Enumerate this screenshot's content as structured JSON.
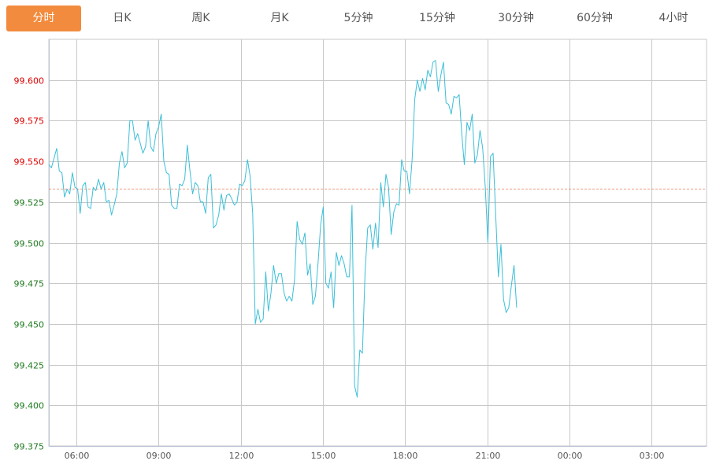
{
  "tabs": [
    {
      "label": "分时",
      "active": true
    },
    {
      "label": "日K"
    },
    {
      "label": "周K"
    },
    {
      "label": "月K"
    },
    {
      "label": "5分钟"
    },
    {
      "label": "15分钟"
    },
    {
      "label": "30分钟"
    },
    {
      "label": "60分钟"
    },
    {
      "label": "4小时"
    }
  ],
  "colors": {
    "active_tab": "#F28B3E",
    "line": "#3BBFD8",
    "reference": "#E8602C",
    "above": "#E00000",
    "below": "#1F7A1F",
    "grid": "#C8C8C8"
  },
  "chart_data": {
    "type": "line",
    "title": "",
    "xlabel": "",
    "ylabel": "",
    "ylim": [
      99.375,
      99.625
    ],
    "y_ticks": [
      "99.600",
      "99.575",
      "99.550",
      "99.525",
      "99.500",
      "99.475",
      "99.450",
      "99.425",
      "99.400",
      "99.375"
    ],
    "x_range_hours": [
      5,
      29
    ],
    "x_ticks": [
      {
        "label": "06:00",
        "h": 6
      },
      {
        "label": "09:00",
        "h": 9
      },
      {
        "label": "12:00",
        "h": 12
      },
      {
        "label": "15:00",
        "h": 15
      },
      {
        "label": "18:00",
        "h": 18
      },
      {
        "label": "21:00",
        "h": 21
      },
      {
        "label": "00:00",
        "h": 24
      },
      {
        "label": "03:00",
        "h": 27
      }
    ],
    "reference_price": 99.533,
    "grid": true,
    "series": [
      {
        "name": "price",
        "start_hour": 5.0,
        "end_hour": 22.07,
        "values": [
          99.548,
          99.546,
          99.552,
          99.558,
          99.544,
          99.543,
          99.528,
          99.533,
          99.53,
          99.543,
          99.534,
          99.533,
          99.518,
          99.535,
          99.537,
          99.522,
          99.521,
          99.534,
          99.532,
          99.539,
          99.533,
          99.537,
          99.525,
          99.526,
          99.517,
          99.523,
          99.53,
          99.549,
          99.556,
          99.546,
          99.549,
          99.575,
          99.575,
          99.563,
          99.567,
          99.561,
          99.555,
          99.559,
          99.575,
          99.559,
          99.556,
          99.567,
          99.571,
          99.579,
          99.55,
          99.543,
          99.542,
          99.523,
          99.521,
          99.521,
          99.536,
          99.535,
          99.539,
          99.56,
          99.544,
          99.53,
          99.537,
          99.535,
          99.525,
          99.525,
          99.518,
          99.54,
          99.542,
          99.509,
          99.511,
          99.517,
          99.53,
          99.52,
          99.529,
          99.53,
          99.527,
          99.523,
          99.525,
          99.536,
          99.535,
          99.538,
          99.551,
          99.541,
          99.518,
          99.45,
          99.459,
          99.451,
          99.453,
          99.482,
          99.458,
          99.469,
          99.486,
          99.475,
          99.481,
          99.481,
          99.469,
          99.464,
          99.467,
          99.464,
          99.477,
          99.513,
          99.502,
          99.499,
          99.506,
          99.48,
          99.487,
          99.462,
          99.467,
          99.487,
          99.511,
          99.522,
          99.475,
          99.472,
          99.482,
          99.46,
          99.494,
          99.486,
          99.492,
          99.487,
          99.479,
          99.479,
          99.523,
          99.412,
          99.405,
          99.434,
          99.432,
          99.482,
          99.509,
          99.511,
          99.496,
          99.512,
          99.497,
          99.537,
          99.522,
          99.542,
          99.534,
          99.505,
          99.519,
          99.524,
          99.523,
          99.551,
          99.544,
          99.544,
          99.53,
          99.551,
          99.588,
          99.6,
          99.593,
          99.601,
          99.594,
          99.606,
          99.602,
          99.611,
          99.612,
          99.593,
          99.603,
          99.611,
          99.586,
          99.585,
          99.579,
          99.59,
          99.589,
          99.591,
          99.567,
          99.548,
          99.574,
          99.569,
          99.579,
          99.549,
          99.554,
          99.569,
          99.558,
          99.534,
          99.5,
          99.553,
          99.555,
          99.516,
          99.479,
          99.499,
          99.465,
          99.457,
          99.46,
          99.474,
          99.486,
          99.46
        ]
      }
    ]
  }
}
